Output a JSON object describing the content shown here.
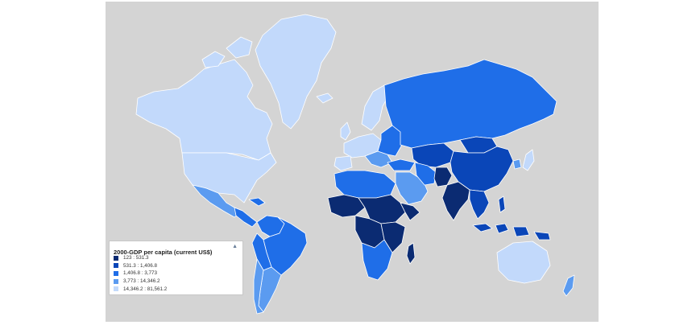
{
  "map": {
    "background_color": "#d4d4d4",
    "border_color": "#ffffff",
    "classes": [
      "#0b2b72",
      "#0a46b8",
      "#1f6ee8",
      "#5b9bf0",
      "#c2d9fb"
    ]
  },
  "legend": {
    "title": "2000-GDP per capita (current US$)",
    "toggle_icon": "collapse-caret-icon",
    "toggle_glyph": "▲",
    "items": [
      {
        "label": "123 : 531.3",
        "color": "#0b2b72"
      },
      {
        "label": "531.3 : 1,406.8",
        "color": "#0a46b8"
      },
      {
        "label": "1,406.8 : 3,773",
        "color": "#1f6ee8"
      },
      {
        "label": "3,773 : 14,346.2",
        "color": "#5b9bf0"
      },
      {
        "label": "14,346.2 : 81,561.2",
        "color": "#c2d9fb"
      }
    ]
  }
}
